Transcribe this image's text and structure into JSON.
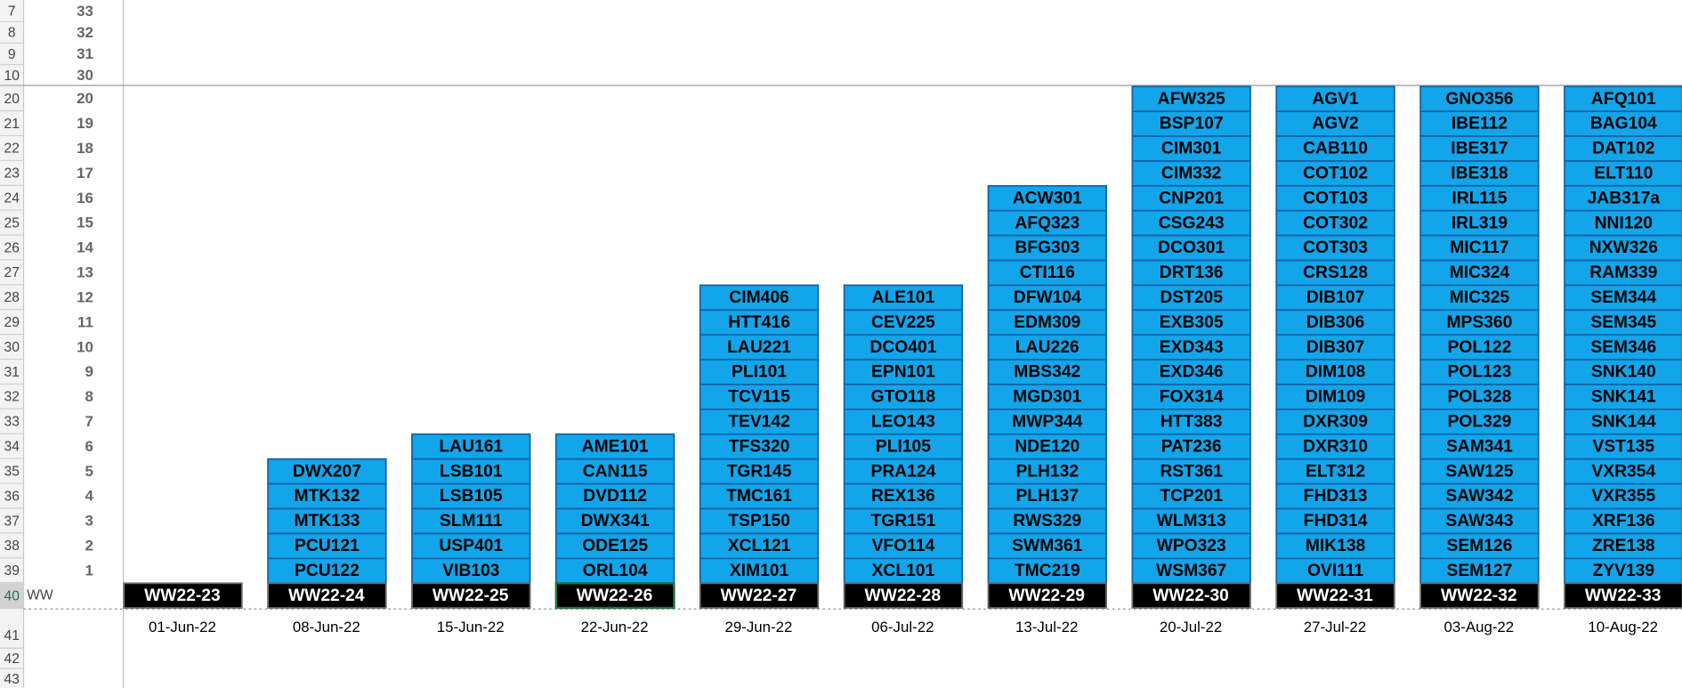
{
  "row_headers": [
    7,
    8,
    9,
    10,
    20,
    21,
    22,
    23,
    24,
    25,
    26,
    27,
    28,
    29,
    30,
    31,
    32,
    33,
    34,
    35,
    36,
    37,
    38,
    39,
    40,
    41,
    42,
    43
  ],
  "scale": [
    33,
    32,
    31,
    30,
    20,
    19,
    18,
    17,
    16,
    15,
    14,
    13,
    12,
    11,
    10,
    9,
    8,
    7,
    6,
    5,
    4,
    3,
    2,
    1
  ],
  "corner_label": "WW",
  "columns": [
    {
      "week": "WW22-23",
      "date": "01-Jun-22",
      "items": []
    },
    {
      "week": "WW22-24",
      "date": "08-Jun-22",
      "items": [
        "DWX207",
        "MTK132",
        "MTK133",
        "PCU121",
        "PCU122"
      ]
    },
    {
      "week": "WW22-25",
      "date": "15-Jun-22",
      "items": [
        "LAU161",
        "LSB101",
        "LSB105",
        "SLM111",
        "USP401",
        "VIB103"
      ]
    },
    {
      "week": "WW22-26",
      "date": "22-Jun-22",
      "items": [
        "AME101",
        "CAN115",
        "DVD112",
        "DWX341",
        "ODE125",
        "ORL104"
      ]
    },
    {
      "week": "WW22-27",
      "date": "29-Jun-22",
      "items": [
        "CIM406",
        "HTT416",
        "LAU221",
        "PLI101",
        "TCV115",
        "TEV142",
        "TFS320",
        "TGR145",
        "TMC161",
        "TSP150",
        "XCL121",
        "XIM101"
      ]
    },
    {
      "week": "WW22-28",
      "date": "06-Jul-22",
      "items": [
        "ALE101",
        "CEV225",
        "DCO401",
        "EPN101",
        "GTO118",
        "LEO143",
        "PLI105",
        "PRA124",
        "REX136",
        "TGR151",
        "VFO114",
        "XCL101"
      ]
    },
    {
      "week": "WW22-29",
      "date": "13-Jul-22",
      "items": [
        "ACW301",
        "AFQ323",
        "BFG303",
        "CTI116",
        "DFW104",
        "EDM309",
        "LAU226",
        "MBS342",
        "MGD301",
        "MWP344",
        "NDE120",
        "PLH132",
        "PLH137",
        "RWS329",
        "SWM361",
        "TMC219"
      ]
    },
    {
      "week": "WW22-30",
      "date": "20-Jul-22",
      "items": [
        "AFW325",
        "BSP107",
        "CIM301",
        "CIM332",
        "CNP201",
        "CSG243",
        "DCO301",
        "DRT136",
        "DST205",
        "EXB305",
        "EXD343",
        "EXD346",
        "FOX314",
        "HTT383",
        "PAT236",
        "RST361",
        "TCP201",
        "WLM313",
        "WPO323",
        "WSM367"
      ]
    },
    {
      "week": "WW22-31",
      "date": "27-Jul-22",
      "items": [
        "AGV1",
        "AGV2",
        "CAB110",
        "COT102",
        "COT103",
        "COT302",
        "COT303",
        "CRS128",
        "DIB107",
        "DIB306",
        "DIB307",
        "DIM108",
        "DIM109",
        "DXR309",
        "DXR310",
        "ELT312",
        "FHD313",
        "FHD314",
        "MIK138",
        "OVI111"
      ]
    },
    {
      "week": "WW22-32",
      "date": "03-Aug-22",
      "items": [
        "GNO356",
        "IBE112",
        "IBE317",
        "IBE318",
        "IRL115",
        "IRL319",
        "MIC117",
        "MIC324",
        "MIC325",
        "MPS360",
        "POL122",
        "POL123",
        "POL328",
        "POL329",
        "SAM341",
        "SAW125",
        "SAW342",
        "SAW343",
        "SEM126",
        "SEM127"
      ]
    },
    {
      "week": "WW22-33",
      "date": "10-Aug-22",
      "items": [
        "AFQ101",
        "BAG104",
        "DAT102",
        "ELT110",
        "JAB317a",
        "NNI120",
        "NXW326",
        "RAM339",
        "SEM344",
        "SEM345",
        "SEM346",
        "SNK140",
        "SNK141",
        "SNK144",
        "VST135",
        "VXR354",
        "VXR355",
        "XRF136",
        "ZRE138",
        "ZYV139"
      ]
    }
  ]
}
